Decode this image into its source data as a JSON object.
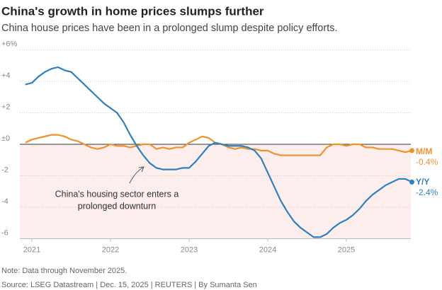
{
  "chart_data": {
    "type": "line",
    "title": "China's growth in home prices slumps further",
    "subtitle": "China house prices have been in a prolonged slump despite policy efforts.",
    "categories": [
      null,
      "2021",
      null,
      null,
      null,
      null,
      null,
      null,
      null,
      null,
      null,
      null,
      null,
      "2022",
      null,
      null,
      null,
      null,
      null,
      null,
      null,
      null,
      null,
      null,
      null,
      "2023",
      null,
      null,
      null,
      null,
      null,
      null,
      null,
      null,
      null,
      null,
      null,
      "2024",
      null,
      null,
      null,
      null,
      null,
      null,
      null,
      null,
      null,
      null,
      null,
      "2025",
      null,
      null,
      null,
      null,
      null,
      null,
      null,
      null,
      null,
      null
    ],
    "series": [
      {
        "name": "M/M",
        "color": "#f0922b",
        "values": [
          0.1,
          0.3,
          0.4,
          0.5,
          0.6,
          0.6,
          0.5,
          0.3,
          0.2,
          0.0,
          -0.2,
          -0.3,
          -0.2,
          0.0,
          -0.1,
          -0.1,
          -0.2,
          -0.1,
          0.0,
          0.0,
          -0.3,
          -0.2,
          -0.3,
          -0.2,
          -0.2,
          0.1,
          0.3,
          0.5,
          0.4,
          0.1,
          0.0,
          -0.2,
          -0.3,
          -0.2,
          -0.3,
          -0.3,
          -0.4,
          -0.4,
          -0.6,
          -0.7,
          -0.7,
          -0.7,
          -0.7,
          -0.7,
          -0.7,
          -0.7,
          -0.2,
          0.0,
          0.0,
          -0.1,
          0.0,
          0.0,
          -0.2,
          -0.2,
          -0.3,
          -0.3,
          -0.3,
          -0.4,
          -0.5,
          -0.4
        ],
        "value_labels": [
          null,
          null,
          null,
          null,
          null,
          null,
          null,
          null,
          null,
          null,
          null,
          null,
          null,
          null,
          null,
          null,
          null,
          null,
          null,
          null,
          null,
          null,
          null,
          null,
          null,
          null,
          null,
          null,
          null,
          null,
          null,
          null,
          null,
          null,
          null,
          null,
          null,
          null,
          null,
          null,
          null,
          null,
          null,
          null,
          null,
          null,
          null,
          null,
          null,
          null,
          null,
          null,
          null,
          null,
          null,
          null,
          null,
          null,
          null,
          "-0.4%"
        ]
      },
      {
        "name": "Y/Y",
        "color": "#2f7fc1",
        "values": [
          3.8,
          3.9,
          4.3,
          4.6,
          4.8,
          4.9,
          4.7,
          4.6,
          4.2,
          3.8,
          3.4,
          3.0,
          2.6,
          2.3,
          2.0,
          1.4,
          0.6,
          -0.1,
          -0.7,
          -1.2,
          -1.5,
          -1.6,
          -1.6,
          -1.6,
          -1.5,
          -1.5,
          -1.1,
          -0.6,
          -0.1,
          0.1,
          0.0,
          -0.1,
          -0.1,
          -0.1,
          -0.2,
          -0.4,
          -0.9,
          -1.8,
          -2.7,
          -3.6,
          -4.3,
          -4.9,
          -5.3,
          -5.6,
          -5.9,
          -5.9,
          -5.7,
          -5.3,
          -5.0,
          -4.8,
          -4.5,
          -4.1,
          -3.6,
          -3.2,
          -2.9,
          -2.6,
          -2.4,
          -2.2,
          -2.2,
          -2.4
        ],
        "value_labels": [
          null,
          null,
          null,
          null,
          null,
          null,
          null,
          null,
          null,
          null,
          null,
          null,
          null,
          null,
          null,
          null,
          null,
          null,
          null,
          null,
          null,
          null,
          null,
          null,
          null,
          null,
          null,
          null,
          null,
          null,
          null,
          null,
          null,
          null,
          null,
          null,
          null,
          null,
          null,
          null,
          null,
          null,
          null,
          null,
          null,
          null,
          null,
          null,
          null,
          null,
          null,
          null,
          null,
          null,
          null,
          null,
          null,
          null,
          null,
          "-2.4%"
        ]
      }
    ],
    "ylim": [
      -6,
      6
    ],
    "yticks": [
      {
        "value": 6,
        "label": "+6%"
      },
      {
        "value": 4,
        "label": "+4"
      },
      {
        "value": 2,
        "label": "+2"
      },
      {
        "value": 0,
        "label": "±0"
      },
      -2,
      -4,
      -6
    ],
    "grid": true,
    "annotation": [
      "China's housing sector enters a",
      "prolonged downturn"
    ],
    "note": "Note: Data through November 2025.",
    "source": "Source: LSEG Datastream | Dec. 15, 2025 | REUTERS | By Sumanta Sen"
  }
}
